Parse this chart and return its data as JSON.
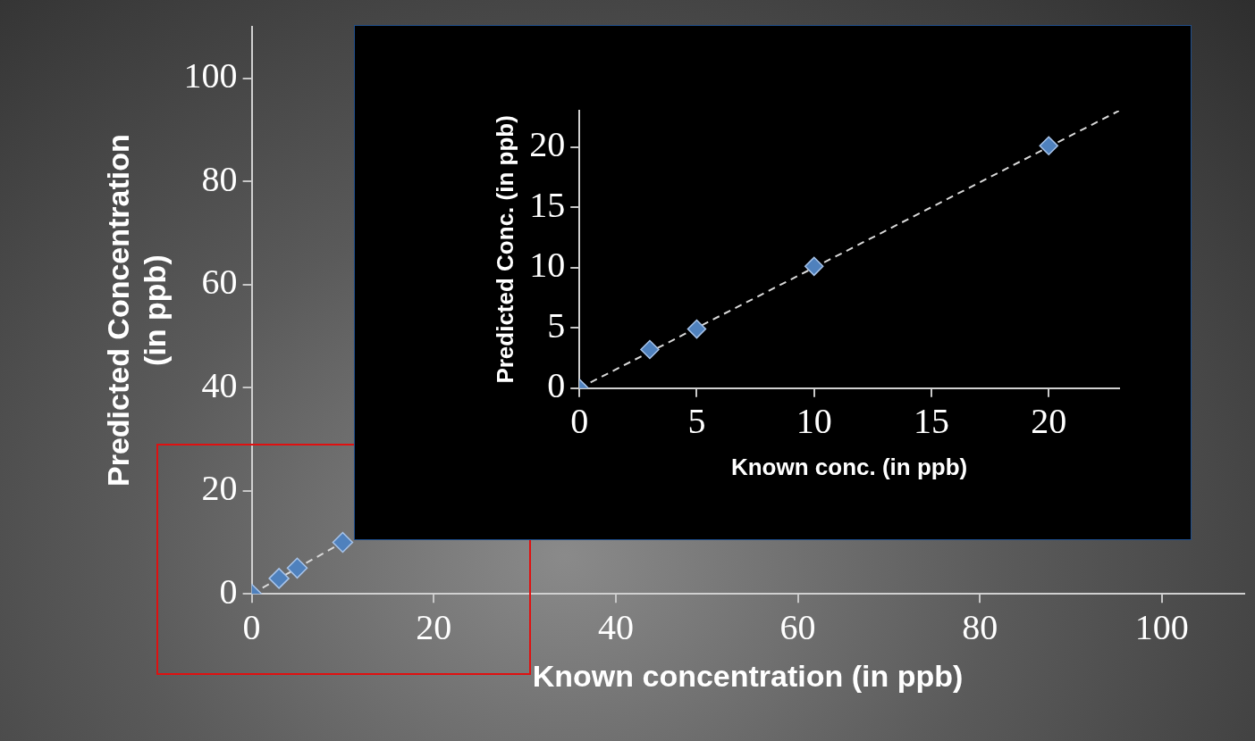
{
  "chart_data": [
    {
      "type": "scatter",
      "xlabel": "Known concentration (in ppb)",
      "ylabel": "Predicted Concentration (in ppb)",
      "xlim": [
        0,
        109
      ],
      "ylim": [
        0,
        110
      ],
      "xticks": [
        0,
        20,
        40,
        60,
        80,
        100
      ],
      "yticks": [
        0,
        20,
        40,
        60,
        80,
        100
      ],
      "grid": false,
      "legend": false,
      "series": [
        {
          "color": "#4f81bd",
          "marker": "diamond",
          "x": [
            0,
            3,
            5,
            10
          ],
          "values": [
            0,
            3,
            5,
            10
          ]
        },
        {
          "type": "line",
          "color": "#d9d9d9",
          "line_style": "dashed",
          "marker": "none",
          "x": [
            0,
            10
          ],
          "values": [
            0,
            10
          ]
        }
      ]
    },
    {
      "type": "scatter",
      "xlabel": "Known conc. (in ppb)",
      "ylabel": "Predicted Conc. (in ppb)",
      "xlim": [
        0,
        23
      ],
      "ylim": [
        0,
        23
      ],
      "xticks": [
        0,
        5,
        10,
        15,
        20
      ],
      "yticks": [
        0,
        5,
        10,
        15,
        20
      ],
      "grid": false,
      "legend": false,
      "series": [
        {
          "color": "#4f81bd",
          "marker": "diamond",
          "x": [
            0,
            3,
            5,
            10,
            20
          ],
          "values": [
            0,
            3.2,
            4.9,
            10.1,
            20.1
          ]
        },
        {
          "type": "line",
          "color": "#d9d9d9",
          "line_style": "dashed",
          "marker": "none",
          "x": [
            0,
            23
          ],
          "values": [
            0,
            23
          ]
        }
      ]
    }
  ]
}
